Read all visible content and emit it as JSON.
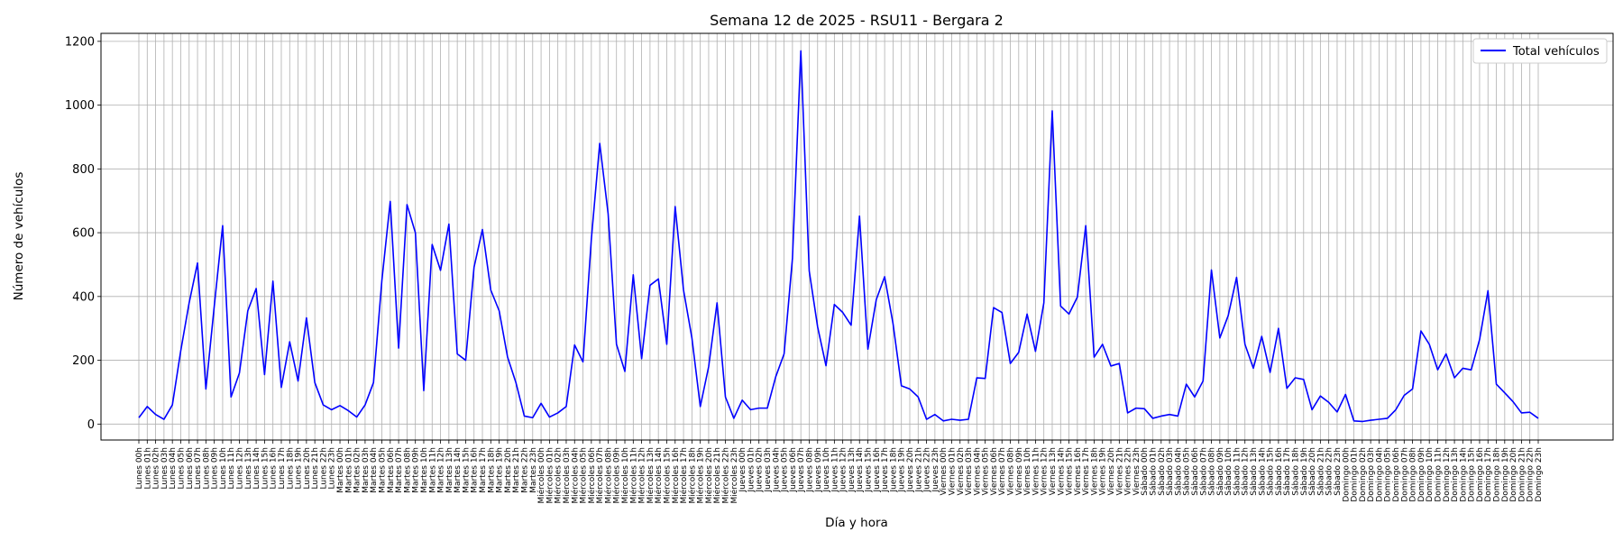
{
  "chart_data": {
    "type": "line",
    "title": "Semana 12 de 2025 - RSU11 - Bergara 2",
    "xlabel": "Día y hora",
    "ylabel": "Número de vehículos",
    "ylim": [
      -50,
      1225
    ],
    "yticks": [
      0,
      200,
      400,
      600,
      800,
      1000,
      1200
    ],
    "grid": true,
    "legend_position": "top-right",
    "days": [
      "Lunes",
      "Martes",
      "Miércoles",
      "Jueves",
      "Viernes",
      "Sábado",
      "Domingo"
    ],
    "series": [
      {
        "name": "Total vehículos",
        "color": "#0000ff",
        "values": [
          20,
          55,
          30,
          15,
          60,
          230,
          380,
          505,
          110,
          370,
          622,
          85,
          160,
          355,
          425,
          155,
          448,
          115,
          258,
          135,
          333,
          130,
          60,
          45,
          58,
          42,
          22,
          60,
          130,
          450,
          698,
          238,
          688,
          600,
          105,
          563,
          482,
          627,
          220,
          200,
          492,
          610,
          420,
          355,
          210,
          130,
          25,
          20,
          65,
          22,
          35,
          55,
          248,
          195,
          580,
          880,
          660,
          250,
          165,
          468,
          205,
          435,
          455,
          250,
          682,
          420,
          270,
          55,
          180,
          380,
          85,
          18,
          75,
          45,
          50,
          50,
          148,
          220,
          520,
          1170,
          480,
          305,
          183,
          375,
          350,
          310,
          652,
          235,
          390,
          462,
          315,
          120,
          110,
          85,
          15,
          30,
          10,
          15,
          12,
          15,
          145,
          143,
          365,
          350,
          190,
          225,
          345,
          228,
          380,
          982,
          370,
          345,
          398,
          622,
          210,
          250,
          182,
          190,
          35,
          50,
          48,
          18,
          25,
          30,
          25,
          125,
          85,
          135,
          483,
          270,
          340,
          460,
          250,
          175,
          275,
          162,
          300,
          112,
          145,
          140,
          45,
          88,
          68,
          38,
          93,
          10,
          8,
          12,
          15,
          18,
          45,
          90,
          110,
          292,
          250,
          170,
          220,
          145,
          175,
          170,
          265,
          418,
          125,
          98,
          70,
          35,
          37,
          18
        ]
      }
    ]
  }
}
